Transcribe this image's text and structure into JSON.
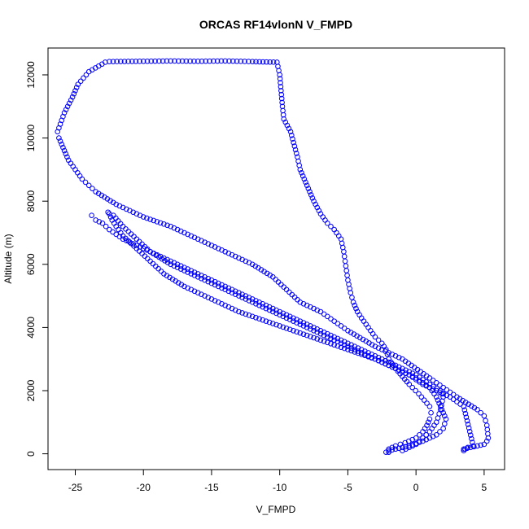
{
  "chart_data": {
    "type": "scatter",
    "title": "ORCAS RF14vlonN V_FMPD",
    "xlabel": "V_FMPD",
    "ylabel": "Altitude (m)",
    "xlim": [
      -27.0,
      6.5
    ],
    "ylim": [
      -500,
      12850
    ],
    "xticks": [
      -25,
      -20,
      -15,
      -10,
      -5,
      0,
      5
    ],
    "yticks": [
      0,
      2000,
      4000,
      6000,
      8000,
      10000,
      12000
    ],
    "xtick_labels": [
      "-25",
      "-20",
      "-15",
      "-10",
      "-5",
      "0",
      "5"
    ],
    "ytick_labels": [
      "0",
      "2000",
      "4000",
      "6000",
      "8000",
      "10000",
      "12000"
    ],
    "grid": false,
    "marker": "open-circle",
    "point_color": "#0000ff",
    "series": [
      {
        "x": [
          -2.0,
          -2.0,
          -1.5,
          -0.8,
          0.0,
          0.5,
          0.8,
          1.0,
          1.1,
          1.0,
          0.2,
          -0.5,
          -1.5,
          -2.0,
          -2.2,
          -2.5,
          -3.0,
          -3.5,
          -4.0,
          -4.3,
          -4.6,
          -4.8,
          -5.0,
          -5.1,
          -5.2,
          -5.3,
          -5.5,
          -6.0,
          -6.5,
          -7.0,
          -7.5,
          -8.0,
          -8.5,
          -8.7,
          -9.2,
          -9.7,
          -9.8,
          -9.9,
          -10.0,
          -10.2,
          -12.0,
          -14.0,
          -16.0,
          -18.0,
          -20.0,
          -22.5,
          -22.8,
          -24.0,
          -24.8,
          -25.2,
          -25.8,
          -26.3,
          -26.2,
          -25.8,
          -25.5,
          -25.0,
          -24.5,
          -24.0,
          -23.5,
          -22.0,
          -20.0,
          -18.0,
          -16.0,
          -14.0,
          -12.0,
          -10.5,
          -9.5,
          -8.5,
          -7.0,
          -6.0,
          -5.0,
          -3.0,
          -1.0,
          1.0,
          2.0,
          3.0,
          4.5,
          5.0,
          5.2,
          5.3,
          5.2,
          5.0,
          4.5,
          4.0,
          3.5
        ],
        "y": [
          50,
          150,
          250,
          350,
          500,
          700,
          900,
          1100,
          1300,
          1500,
          1900,
          2200,
          2700,
          3000,
          3300,
          3500,
          3700,
          4000,
          4300,
          4500,
          4800,
          5100,
          5500,
          5800,
          6100,
          6400,
          6800,
          7100,
          7300,
          7600,
          8000,
          8500,
          9000,
          9400,
          10200,
          10600,
          11000,
          11500,
          12000,
          12400,
          12420,
          12440,
          12430,
          12440,
          12430,
          12420,
          12400,
          12100,
          11700,
          11300,
          10800,
          10200,
          10000,
          9600,
          9300,
          9000,
          8700,
          8500,
          8300,
          7900,
          7500,
          7200,
          6800,
          6400,
          6000,
          5600,
          5200,
          4800,
          4500,
          4200,
          3900,
          3400,
          3000,
          2400,
          2100,
          1800,
          1400,
          1200,
          900,
          500,
          400,
          300,
          250,
          200,
          150
        ]
      },
      {
        "x": [
          -1.0,
          -0.5,
          0.0,
          0.5,
          1.0,
          1.5,
          1.8,
          2.0,
          1.8,
          1.0,
          0.0,
          -1.5,
          -3.0,
          -5.0,
          -7.0,
          -9.0,
          -11.0,
          -13.0,
          -15.0,
          -17.0,
          -18.5,
          -20.0,
          -21.5,
          -22.5,
          -23.0,
          -23.5,
          -23.8
        ],
        "y": [
          100,
          200,
          300,
          500,
          700,
          1000,
          1400,
          1800,
          2000,
          2200,
          2500,
          2800,
          3100,
          3500,
          3900,
          4300,
          4700,
          5100,
          5500,
          5900,
          6200,
          6500,
          6800,
          7100,
          7300,
          7400,
          7550
        ]
      },
      {
        "x": [
          3.6,
          3.5,
          3.8,
          4.2,
          3.5,
          2.5,
          1.5,
          0.5,
          -0.5,
          -1.5,
          -3.0,
          -5.0,
          -7.0,
          -9.0,
          -11.0,
          -13.0,
          -15.0,
          -17.0,
          -18.5,
          -19.5,
          -20.5,
          -21.5,
          -22.0,
          -22.3,
          -22.5,
          -22.6,
          -22.2,
          -21.5,
          -20.5,
          -19.5,
          -18.0,
          -16.0,
          -14.0,
          -12.0,
          -10.0,
          -8.0,
          -6.0,
          -4.0,
          -2.0,
          0.0,
          1.0,
          1.5,
          1.8,
          2.0,
          2.2,
          2.0,
          1.5,
          0.5,
          -0.5,
          -1.0,
          -1.5,
          -2.0,
          -2.2
        ],
        "y": [
          150,
          100,
          200,
          250,
          1500,
          1800,
          2000,
          2200,
          2500,
          2700,
          3000,
          3300,
          3600,
          3900,
          4200,
          4500,
          4900,
          5300,
          5700,
          6100,
          6500,
          6900,
          7200,
          7400,
          7600,
          7650,
          7550,
          7200,
          6800,
          6400,
          6000,
          5600,
          5200,
          4800,
          4400,
          4000,
          3600,
          3200,
          2800,
          2400,
          2100,
          1800,
          1500,
          1300,
          1100,
          800,
          600,
          400,
          250,
          200,
          150,
          100,
          50
        ]
      }
    ]
  }
}
